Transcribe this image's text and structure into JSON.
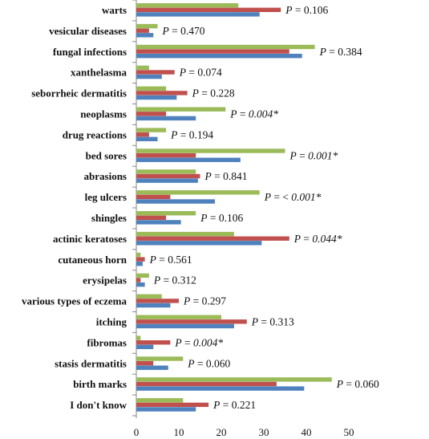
{
  "chart_data": {
    "type": "bar",
    "orientation": "horizontal",
    "title": "",
    "xlabel": "",
    "ylabel": "",
    "xlim": [
      0,
      50
    ],
    "x_ticks": [
      "0",
      "10",
      "20",
      "30",
      "40",
      "50"
    ],
    "grid": false,
    "legend": "none",
    "colors": [
      "#9BBB59",
      "#C0504D",
      "#4F81BD"
    ],
    "categories": [
      "warts",
      "vesicular diseases",
      "fungal infections",
      "xanthelasma",
      "seborrheic dermatitis",
      "neoplasms",
      "drug reactions",
      "bed sores",
      "abrasions",
      "leg ulcers",
      "shingles",
      "actinic keratoses",
      "cutaneous horn",
      "erysipelas",
      "various types of eczema",
      "itching",
      "fibromas",
      "stasis dermatitis",
      "birth marks",
      "I don't know"
    ],
    "series": [
      {
        "values": [
          24,
          5,
          42,
          3,
          7,
          21,
          7,
          35,
          14,
          29,
          14,
          23,
          1,
          3,
          6,
          20,
          1,
          11,
          46,
          11
        ]
      },
      {
        "values": [
          34,
          3,
          36,
          9,
          12,
          7,
          3,
          14,
          15,
          8,
          7,
          36,
          2,
          1,
          10,
          26,
          8,
          4,
          33,
          17
        ]
      },
      {
        "values": [
          29,
          4,
          39,
          6,
          9.5,
          14,
          5,
          24.5,
          14.5,
          18.5,
          10.5,
          29.5,
          1.5,
          2,
          8,
          23,
          4,
          7.5,
          39.5,
          14
        ]
      }
    ],
    "annotations": [
      {
        "prefix": "P",
        "eq": " = ",
        "value": "0.106",
        "italic_value": false,
        "star": ""
      },
      {
        "prefix": "P",
        "eq": " = ",
        "value": "0.470",
        "italic_value": false,
        "star": ""
      },
      {
        "prefix": "P",
        "eq": " = ",
        "value": "0.384",
        "italic_value": false,
        "star": ""
      },
      {
        "prefix": "P",
        "eq": " = ",
        "value": "0.074",
        "italic_value": false,
        "star": ""
      },
      {
        "prefix": "P",
        "eq": " = ",
        "value": "0.228",
        "italic_value": false,
        "star": ""
      },
      {
        "prefix": "P",
        "eq": " = ",
        "value": "0.004",
        "italic_value": true,
        "star": "*"
      },
      {
        "prefix": "P",
        "eq": " = ",
        "value": "0.194",
        "italic_value": false,
        "star": ""
      },
      {
        "prefix": "P",
        "eq": " = ",
        "value": "0.001",
        "italic_value": true,
        "star": "*"
      },
      {
        "prefix": "P",
        "eq": " = ",
        "value": "0.841",
        "italic_value": false,
        "star": ""
      },
      {
        "prefix": "P",
        "eq": " = < ",
        "value": "0.001",
        "italic_value": true,
        "star": "*"
      },
      {
        "prefix": "P",
        "eq": " = ",
        "value": "0.106",
        "italic_value": false,
        "star": ""
      },
      {
        "prefix": "P",
        "eq": " = ",
        "value": "0.044",
        "italic_value": true,
        "star": "*"
      },
      {
        "prefix": "P",
        "eq": " = ",
        "value": "0.561",
        "italic_value": false,
        "star": ""
      },
      {
        "prefix": "P",
        "eq": " = ",
        "value": "0.312",
        "italic_value": false,
        "star": ""
      },
      {
        "prefix": "P",
        "eq": " = ",
        "value": "0.297",
        "italic_value": false,
        "star": ""
      },
      {
        "prefix": "P",
        "eq": " = ",
        "value": "0.313",
        "italic_value": false,
        "star": ""
      },
      {
        "prefix": "P",
        "eq": " = ",
        "value": "0.004",
        "italic_value": true,
        "star": "*"
      },
      {
        "prefix": "P",
        "eq": " = ",
        "value": "0.060",
        "italic_value": false,
        "star": ""
      },
      {
        "prefix": "P",
        "eq": " = ",
        "value": "0.060",
        "italic_value": false,
        "star": ""
      },
      {
        "prefix": "P",
        "eq": " = ",
        "value": "0.221",
        "italic_value": false,
        "star": ""
      }
    ]
  }
}
